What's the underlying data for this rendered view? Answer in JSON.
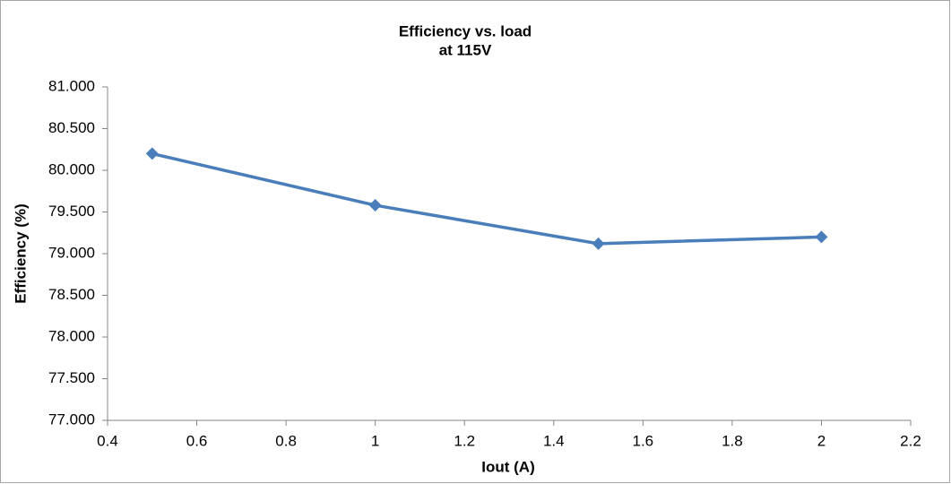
{
  "chart_data": {
    "type": "line",
    "title": "Efficiency vs. load",
    "subtitle": "at 115V",
    "x_label": "Iout (A)",
    "y_label": "Efficiency (%)",
    "x": [
      0.5,
      1,
      1.5,
      2
    ],
    "values": [
      80.2,
      79.58,
      79.12,
      79.2
    ],
    "color": "#4a7ebb",
    "xlim": [
      0.4,
      2.2
    ],
    "xticks": [
      0.4,
      0.6,
      0.8,
      1,
      1.2,
      1.4,
      1.6,
      1.8,
      2,
      2.2
    ],
    "ylim": [
      77,
      81
    ],
    "yticks": [
      {
        "value": 77,
        "label": "77.000"
      },
      {
        "value": 77.5,
        "label": "77.500"
      },
      {
        "value": 78,
        "label": "78.000"
      },
      {
        "value": 78.5,
        "label": "78.500"
      },
      {
        "value": 79,
        "label": "79.000"
      },
      {
        "value": 79.5,
        "label": "79.500"
      },
      {
        "value": 80,
        "label": "80.000"
      },
      {
        "value": 80.5,
        "label": "80.500"
      },
      {
        "value": 81,
        "label": "81.000"
      }
    ],
    "grid": false
  }
}
